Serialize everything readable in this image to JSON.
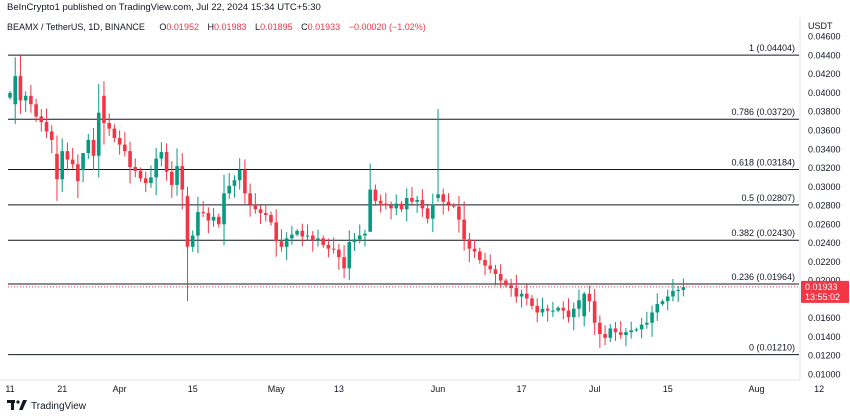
{
  "header": {
    "publisher_line": "BeInCrypto1 published on TradingView.com, Jul 22, 2024 15:34 UTC+5:30",
    "symbol": "BEAMX / TetherUS, 1D, BINANCE",
    "o_label": "O",
    "o_value": "0.01952",
    "h_label": "H",
    "h_value": "0.01983",
    "l_label": "L",
    "l_value": "0.01895",
    "c_label": "C",
    "c_value": "0.01933",
    "change": "−0.00020 (−1.02%)",
    "currency": "USDT"
  },
  "footer": {
    "brand": "TradingView",
    "logo": "tradingview-logo"
  },
  "colors": {
    "up": "#089981",
    "down": "#f23645",
    "fib": "#131722",
    "current": "#f23645"
  },
  "chart_data": {
    "type": "candlestick",
    "y_axis": {
      "range": [
        0.0094,
        0.0465
      ],
      "ticks": [
        "0.04600",
        "0.04400",
        "0.04200",
        "0.04000",
        "0.03800",
        "0.03600",
        "0.03400",
        "0.03200",
        "0.03000",
        "0.02800",
        "0.02600",
        "0.02400",
        "0.02200",
        "0.02000",
        "0.01800",
        "0.01600",
        "0.01400",
        "0.01200",
        "0.01000"
      ]
    },
    "x_axis": {
      "ticks": [
        {
          "label": "11",
          "bar": 0
        },
        {
          "label": "21",
          "bar": 10
        },
        {
          "label": "Apr",
          "bar": 21
        },
        {
          "label": "15",
          "bar": 35
        },
        {
          "label": "May",
          "bar": 51
        },
        {
          "label": "13",
          "bar": 63
        },
        {
          "label": "Jun",
          "bar": 82
        },
        {
          "label": "17",
          "bar": 98
        },
        {
          "label": "Jul",
          "bar": 112
        },
        {
          "label": "15",
          "bar": 126
        },
        {
          "label": "Aug",
          "bar": 143
        },
        {
          "label": "12",
          "bar": 155
        }
      ],
      "total_bars": 160
    },
    "fib_levels": [
      {
        "label": "1 (0.04404)",
        "value": 0.04404
      },
      {
        "label": "0.786 (0.03720)",
        "value": 0.0372
      },
      {
        "label": "0.618 (0.03184)",
        "value": 0.03184
      },
      {
        "label": "0.5 (0.02807)",
        "value": 0.02807
      },
      {
        "label": "0.382 (0.02430)",
        "value": 0.0243
      },
      {
        "label": "0.236 (0.01964)",
        "value": 0.01964
      },
      {
        "label": "0 (0.01210)",
        "value": 0.0121
      }
    ],
    "current_price": {
      "label": "0.01933",
      "countdown": "13:55:02",
      "value": 0.01933
    },
    "closes": [
      0.04,
      0.0418,
      0.0392,
      0.0397,
      0.0388,
      0.0375,
      0.0369,
      0.0359,
      0.035,
      0.0308,
      0.0338,
      0.0329,
      0.0324,
      0.0306,
      0.0336,
      0.035,
      0.0333,
      0.0379,
      0.0368,
      0.0362,
      0.0352,
      0.0345,
      0.0338,
      0.0321,
      0.0317,
      0.0309,
      0.0304,
      0.031,
      0.033,
      0.0337,
      0.0316,
      0.0302,
      0.0322,
      0.0297,
      0.0236,
      0.0248,
      0.0273,
      0.0272,
      0.0264,
      0.0268,
      0.026,
      0.0293,
      0.0301,
      0.0307,
      0.0318,
      0.0293,
      0.0281,
      0.0276,
      0.0272,
      0.027,
      0.0262,
      0.0242,
      0.0236,
      0.0245,
      0.0249,
      0.0253,
      0.0247,
      0.0248,
      0.0243,
      0.0245,
      0.0238,
      0.0234,
      0.0233,
      0.0225,
      0.0213,
      0.0241,
      0.0244,
      0.0248,
      0.025,
      0.0297,
      0.0285,
      0.0282,
      0.028,
      0.0277,
      0.0282,
      0.0276,
      0.0288,
      0.0284,
      0.0286,
      0.0277,
      0.0266,
      0.0281,
      0.0292,
      0.0284,
      0.0281,
      0.0279,
      0.0265,
      0.0244,
      0.0234,
      0.0231,
      0.0222,
      0.0216,
      0.0212,
      0.0207,
      0.02,
      0.0195,
      0.0192,
      0.0183,
      0.0186,
      0.0181,
      0.0173,
      0.0166,
      0.017,
      0.0168,
      0.0168,
      0.0171,
      0.0168,
      0.0161,
      0.017,
      0.0179,
      0.0186,
      0.0178,
      0.0155,
      0.0143,
      0.0139,
      0.0149,
      0.0145,
      0.0142,
      0.0145,
      0.0147,
      0.0148,
      0.0153,
      0.0155,
      0.0166,
      0.0175,
      0.0178,
      0.0183,
      0.0189,
      0.019,
      0.0193
    ],
    "volatile_opens": {
      "1": 0.0388,
      "9": 0.0335,
      "14": 0.0318,
      "18": 0.0397,
      "34": 0.029,
      "69": 0.0252,
      "82": 0.0288,
      "110": 0.0162
    }
  }
}
